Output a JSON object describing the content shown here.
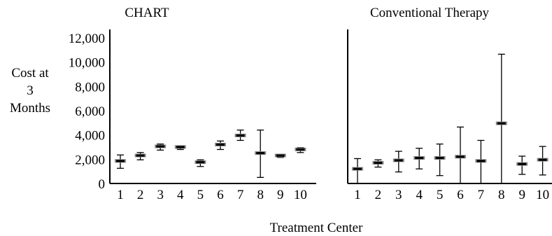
{
  "chart_data": {
    "type": "errorbar",
    "ylabel_lines": [
      "Cost at",
      "3",
      "Months"
    ],
    "xlabel": "Treatment Center",
    "ylim": [
      0,
      12000
    ],
    "yticks": [
      {
        "value": 0,
        "label": "0"
      },
      {
        "value": 2000,
        "label": "2,000"
      },
      {
        "value": 4000,
        "label": "4,000"
      },
      {
        "value": 6000,
        "label": "6,000"
      },
      {
        "value": 8000,
        "label": "8,000"
      },
      {
        "value": 10000,
        "label": "10,000"
      },
      {
        "value": 12000,
        "label": "12,000"
      }
    ],
    "categories": [
      "1",
      "2",
      "3",
      "4",
      "5",
      "6",
      "7",
      "8",
      "9",
      "10"
    ],
    "panels": [
      {
        "title": "CHART",
        "points": [
          {
            "center": "1",
            "mean": 1800,
            "low": 1250,
            "high": 2350
          },
          {
            "center": "2",
            "mean": 2250,
            "low": 1950,
            "high": 2550
          },
          {
            "center": "3",
            "mean": 3000,
            "low": 2750,
            "high": 3250
          },
          {
            "center": "4",
            "mean": 2950,
            "low": 2800,
            "high": 3100
          },
          {
            "center": "5",
            "mean": 1700,
            "low": 1400,
            "high": 1950
          },
          {
            "center": "6",
            "mean": 3150,
            "low": 2800,
            "high": 3500
          },
          {
            "center": "7",
            "mean": 3900,
            "low": 3550,
            "high": 4400
          },
          {
            "center": "8",
            "mean": 2450,
            "low": 500,
            "high": 4400
          },
          {
            "center": "9",
            "mean": 2250,
            "low": 2150,
            "high": 2350
          },
          {
            "center": "10",
            "mean": 2750,
            "low": 2550,
            "high": 2950
          }
        ]
      },
      {
        "title": "Conventional Therapy",
        "points": [
          {
            "center": "1",
            "mean": 1150,
            "low": 0,
            "high": 2050
          },
          {
            "center": "2",
            "mean": 1650,
            "low": 1350,
            "high": 1950
          },
          {
            "center": "3",
            "mean": 1850,
            "low": 950,
            "high": 2650
          },
          {
            "center": "4",
            "mean": 2050,
            "low": 1200,
            "high": 2900
          },
          {
            "center": "5",
            "mean": 2050,
            "low": 650,
            "high": 3250
          },
          {
            "center": "6",
            "mean": 2150,
            "low": 0,
            "high": 4650
          },
          {
            "center": "7",
            "mean": 1800,
            "low": 0,
            "high": 3550
          },
          {
            "center": "8",
            "mean": 4900,
            "low": 0,
            "high": 10650
          },
          {
            "center": "9",
            "mean": 1550,
            "low": 750,
            "high": 2250
          },
          {
            "center": "10",
            "mean": 1900,
            "low": 700,
            "high": 3050
          }
        ]
      }
    ],
    "grid": false,
    "mean_marker_color": "#000000",
    "shadow_color": "#888888"
  }
}
